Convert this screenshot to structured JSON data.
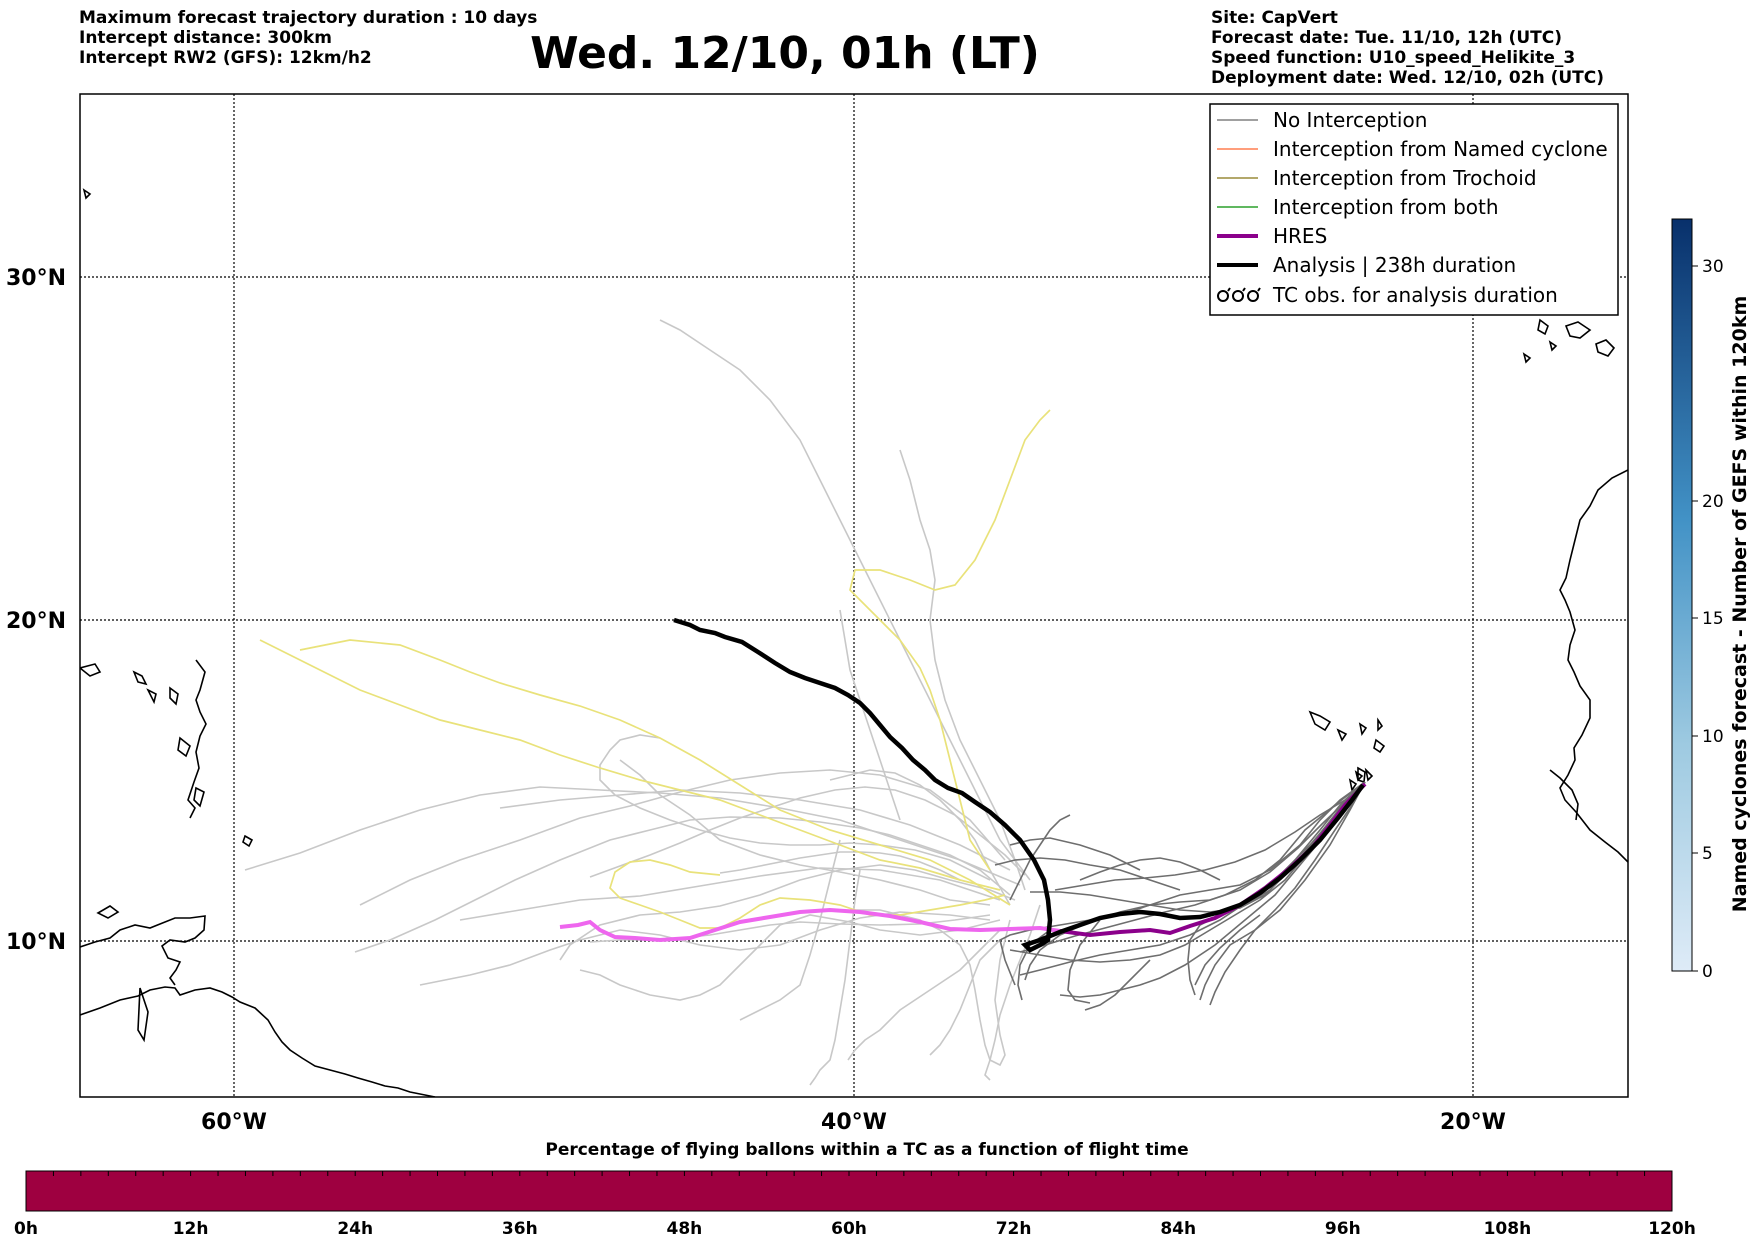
{
  "header_left": [
    "Maximum forecast trajectory duration : 10 days",
    "Intercept distance: 300km",
    "Intercept RW2 (GFS):  12km/h2"
  ],
  "header_right": [
    "Site: CapVert",
    "Forecast date: Tue. 11/10, 12h (UTC)",
    "Speed function: U10_speed_Helikite_3",
    "Deployment date: Wed. 12/10, 02h (UTC)"
  ],
  "title": "Wed. 12/10, 01h (LT)",
  "map": {
    "lat_labels": [
      "30°N",
      "20°N",
      "10°N"
    ],
    "lon_labels": [
      "60°W",
      "40°W",
      "20°W"
    ]
  },
  "legend": {
    "items": [
      {
        "label": "No Interception",
        "color": "#808080"
      },
      {
        "label": "Interception from Named cyclone",
        "color": "#ff7f50"
      },
      {
        "label": "Interception from Trochoid",
        "color": "#9a8c3a"
      },
      {
        "label": "Interception from both",
        "color": "#2ca02c"
      },
      {
        "label": "HRES",
        "color": "#8b008b"
      },
      {
        "label": "Analysis | 238h duration",
        "color": "#000000"
      },
      {
        "label": "TC obs. for analysis duration",
        "color": "#000000",
        "icon": "tc-symbols"
      }
    ]
  },
  "colorbar": {
    "label": "Named cyclones forecast - Number of GEFS within 120km",
    "ticks": [
      "0",
      "5",
      "10",
      "15",
      "20",
      "30"
    ],
    "min": 0,
    "max": 32
  },
  "timebar": {
    "title": "Percentage of flying ballons within a TC as a function of flight time",
    "ticks": [
      "0h",
      "12h",
      "24h",
      "36h",
      "48h",
      "60h",
      "72h",
      "84h",
      "96h",
      "108h",
      "120h"
    ],
    "fill_color": "#9e0040"
  }
}
